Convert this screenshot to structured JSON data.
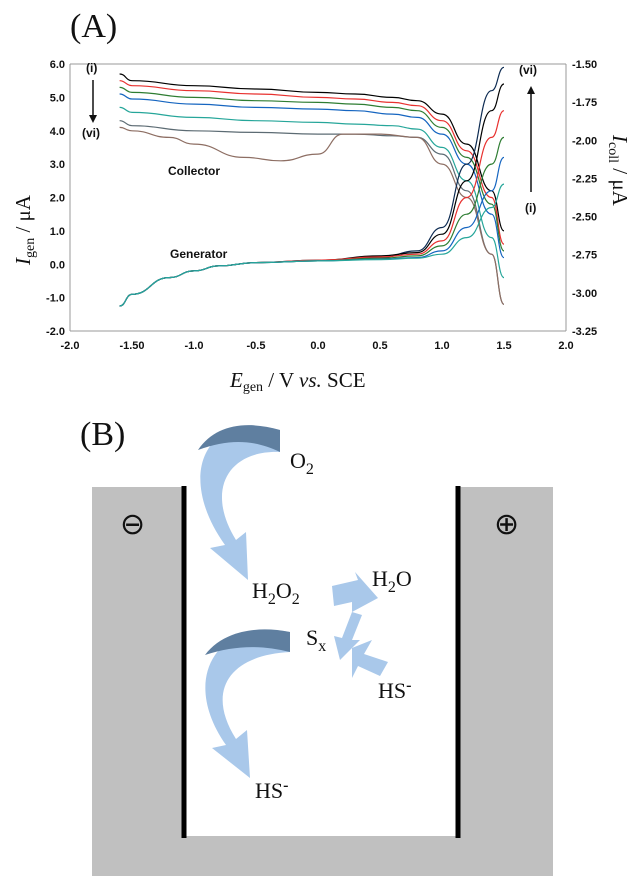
{
  "panels": {
    "a_label": "(A)",
    "b_label": "(B)"
  },
  "chart_data": {
    "type": "line",
    "xlabel": {
      "main": "E",
      "sub": "gen",
      "rest": " / V ",
      "italic": "vs.",
      "tail": " SCE"
    },
    "ylabel_left": {
      "main": "I",
      "sub": "gen",
      "rest": " / μA"
    },
    "ylabel_right": {
      "main": "I",
      "sub": "coll",
      "rest": " / μA"
    },
    "x_ticks": [
      "-2.0",
      "-1.50",
      "-1.0",
      "-0.5",
      "0.0",
      "0.5",
      "1.0",
      "1.5",
      "2.0"
    ],
    "x_tick_values": [
      -2.0,
      -1.5,
      -1.0,
      -0.5,
      0.0,
      0.5,
      1.0,
      1.5,
      2.0
    ],
    "xlim": [
      -2.0,
      2.0
    ],
    "y_left_ticks": [
      "6.0",
      "5.0",
      "4.0",
      "3.0",
      "2.0",
      "1.0",
      "0.0",
      "-1.0",
      "-2.0"
    ],
    "y_left_tick_values": [
      6,
      5,
      4,
      3,
      2,
      1,
      0,
      -1,
      -2
    ],
    "ylim_left": [
      -2.0,
      6.0
    ],
    "y_right_ticks": [
      "-1.50",
      "-1.75",
      "-2.00",
      "-2.25",
      "-2.50",
      "-2.75",
      "-3.00",
      "-3.25"
    ],
    "y_right_tick_values": [
      -1.5,
      -1.75,
      -2.0,
      -2.25,
      -2.5,
      -2.75,
      -3.0,
      -3.25
    ],
    "ylim_right": [
      -3.25,
      -1.5
    ],
    "annotations": {
      "collector": "Collector",
      "generator": "Generator",
      "left_top": "(i)",
      "left_bottom": "(vi)",
      "right_top": "(vi)",
      "right_bottom": "(i)"
    },
    "colors": [
      "#000000",
      "#e8312f",
      "#2e7d32",
      "#1565c0",
      "#26a69a",
      "#5c6b73",
      "#8d6e63",
      "#0d2b52"
    ],
    "series": [
      {
        "x": [
          -1.6,
          -1.5,
          -1.0,
          -0.5,
          0.0,
          0.3,
          0.6,
          0.8,
          1.0,
          1.2,
          1.4,
          1.5
        ],
        "y": [
          5.7,
          5.5,
          5.35,
          5.25,
          5.15,
          5.1,
          5.0,
          4.9,
          4.5,
          3.6,
          2.2,
          1.0
        ]
      },
      {
        "x": [
          -1.6,
          -1.5,
          -1.0,
          -0.5,
          0.0,
          0.3,
          0.6,
          0.8,
          1.0,
          1.2,
          1.4,
          1.5
        ],
        "y": [
          5.5,
          5.35,
          5.2,
          5.1,
          5.0,
          4.95,
          4.85,
          4.75,
          4.3,
          3.4,
          2.0,
          0.6
        ]
      },
      {
        "x": [
          -1.6,
          -1.5,
          -1.0,
          -0.5,
          0.0,
          0.3,
          0.6,
          0.8,
          1.0,
          1.2,
          1.4,
          1.5
        ],
        "y": [
          5.3,
          5.15,
          5.0,
          4.9,
          4.85,
          4.8,
          4.7,
          4.6,
          4.1,
          3.2,
          1.8,
          0.4
        ]
      },
      {
        "x": [
          -1.6,
          -1.5,
          -1.0,
          -0.5,
          0.0,
          0.3,
          0.6,
          0.8,
          1.0,
          1.2,
          1.4,
          1.5
        ],
        "y": [
          5.1,
          4.95,
          4.8,
          4.7,
          4.65,
          4.6,
          4.5,
          4.4,
          3.9,
          3.0,
          1.5,
          0.2
        ]
      },
      {
        "x": [
          -1.6,
          -1.5,
          -1.0,
          -0.5,
          0.0,
          0.3,
          0.6,
          0.8,
          1.0,
          1.2,
          1.4,
          1.5
        ],
        "y": [
          4.7,
          4.55,
          4.4,
          4.3,
          4.25,
          4.2,
          4.15,
          4.05,
          3.5,
          2.5,
          0.8,
          -0.4
        ]
      },
      {
        "x": [
          -1.6,
          -1.5,
          -1.0,
          -0.5,
          0.0,
          0.3,
          0.6,
          0.8,
          1.0,
          1.2,
          1.4,
          1.5
        ],
        "y": [
          4.3,
          4.15,
          4.0,
          3.95,
          3.9,
          3.9,
          3.85,
          3.8,
          3.3,
          2.2,
          0.3,
          -1.2
        ]
      },
      {
        "x": [
          -1.6,
          -1.5,
          -1.2,
          -1.0,
          -0.6,
          -0.3,
          0.0,
          0.2,
          0.5,
          0.8,
          1.0,
          1.2,
          1.4,
          1.5
        ],
        "y": [
          4.1,
          4.0,
          3.8,
          3.6,
          3.2,
          3.1,
          3.3,
          3.9,
          3.9,
          3.8,
          3.0,
          2.0,
          0.3,
          -1.2
        ]
      },
      {
        "x": [
          -1.6,
          -1.5,
          -1.2,
          -1.0,
          -0.8,
          -0.5,
          0.0,
          0.5,
          0.8,
          1.0,
          1.2,
          1.4,
          1.5
        ],
        "y": [
          -1.25,
          -0.9,
          -0.4,
          -0.2,
          -0.05,
          0.05,
          0.1,
          0.2,
          0.4,
          1.1,
          3.0,
          5.2,
          5.9
        ]
      },
      {
        "x": [
          -1.6,
          -1.5,
          -1.2,
          -1.0,
          -0.8,
          -0.5,
          0.0,
          0.5,
          0.8,
          1.0,
          1.2,
          1.4,
          1.5
        ],
        "y": [
          -1.25,
          -0.9,
          -0.4,
          -0.2,
          -0.05,
          0.05,
          0.12,
          0.25,
          0.35,
          0.9,
          2.5,
          4.6,
          5.4
        ]
      },
      {
        "x": [
          -1.6,
          -1.5,
          -1.2,
          -1.0,
          -0.8,
          -0.5,
          0.0,
          0.5,
          0.8,
          1.0,
          1.2,
          1.4,
          1.5
        ],
        "y": [
          -1.25,
          -0.9,
          -0.4,
          -0.2,
          -0.05,
          0.05,
          0.12,
          0.22,
          0.3,
          0.7,
          2.0,
          3.8,
          4.6
        ]
      },
      {
        "x": [
          -1.6,
          -1.5,
          -1.2,
          -1.0,
          -0.8,
          -0.5,
          0.0,
          0.5,
          0.8,
          1.0,
          1.2,
          1.4,
          1.5
        ],
        "y": [
          -1.25,
          -0.9,
          -0.4,
          -0.2,
          -0.05,
          0.05,
          0.1,
          0.18,
          0.25,
          0.55,
          1.5,
          3.0,
          3.8
        ]
      },
      {
        "x": [
          -1.6,
          -1.5,
          -1.2,
          -1.0,
          -0.8,
          -0.5,
          0.0,
          0.5,
          0.8,
          1.0,
          1.2,
          1.4,
          1.5
        ],
        "y": [
          -1.25,
          -0.9,
          -0.4,
          -0.2,
          -0.05,
          0.05,
          0.1,
          0.15,
          0.2,
          0.4,
          1.1,
          2.2,
          3.2
        ]
      },
      {
        "x": [
          -1.6,
          -1.5,
          -1.2,
          -1.0,
          -0.8,
          -0.5,
          0.0,
          0.5,
          0.8,
          1.0,
          1.2,
          1.4,
          1.5
        ],
        "y": [
          -1.25,
          -0.9,
          -0.4,
          -0.2,
          -0.05,
          0.05,
          0.1,
          0.14,
          0.18,
          0.3,
          0.8,
          1.7,
          2.4
        ]
      }
    ]
  },
  "schematic": {
    "left_sign": "⊖",
    "right_sign": "⊕",
    "species": {
      "o2": {
        "base": "O",
        "sub": "2"
      },
      "h2o2": {
        "a": "H",
        "s1": "2",
        "b": "O",
        "s2": "2"
      },
      "h2o": {
        "a": "H",
        "s1": "2",
        "b": "O"
      },
      "sx": {
        "base": "S",
        "sub": "x"
      },
      "hs1": {
        "base": "HS",
        "sup": "-"
      },
      "hs2": {
        "base": "HS",
        "sup": "-"
      }
    },
    "colors": {
      "electrode": "#c0c0c0",
      "arrow_light": "#a9c8ea",
      "arrow_dark": "#5f7fa0"
    }
  }
}
